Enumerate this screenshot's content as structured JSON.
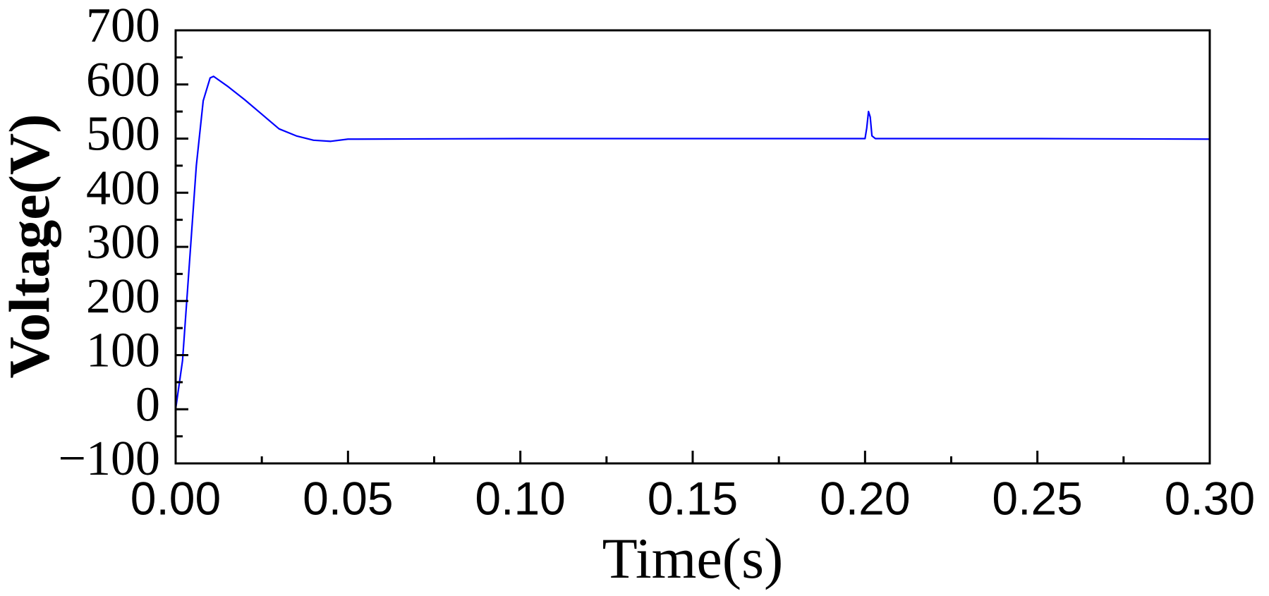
{
  "chart_data": {
    "type": "line",
    "x_label": "Time(s)",
    "y_label": "Voltage(V)",
    "x": [
      0,
      0.002,
      0.004,
      0.006,
      0.008,
      0.01,
      0.011,
      0.015,
      0.02,
      0.025,
      0.03,
      0.035,
      0.04,
      0.045,
      0.05,
      0.1,
      0.15,
      0.2,
      0.2005,
      0.201,
      0.2015,
      0.202,
      0.203,
      0.25,
      0.3
    ],
    "series": [
      {
        "color": "#0000ff",
        "values": [
          0,
          90,
          270,
          450,
          570,
          612,
          615,
          597,
          572,
          545,
          518,
          505,
          497,
          495,
          499,
          500,
          500,
          500,
          520,
          550,
          540,
          505,
          500,
          500,
          499
        ]
      }
    ],
    "xlim": [
      0,
      0.3
    ],
    "xticks": [
      {
        "value": 0,
        "label": "0.00"
      },
      {
        "value": 0.05,
        "label": "0.05"
      },
      {
        "value": 0.1,
        "label": "0.10"
      },
      {
        "value": 0.15,
        "label": "0.15"
      },
      {
        "value": 0.2,
        "label": "0.20"
      },
      {
        "value": 0.25,
        "label": "0.25"
      },
      {
        "value": 0.3,
        "label": "0.30"
      }
    ],
    "ylim": [
      -100,
      700
    ],
    "yticks": [
      {
        "value": -100,
        "label": "−100"
      },
      0,
      100,
      200,
      300,
      400,
      500,
      600,
      700
    ],
    "grid": false
  }
}
